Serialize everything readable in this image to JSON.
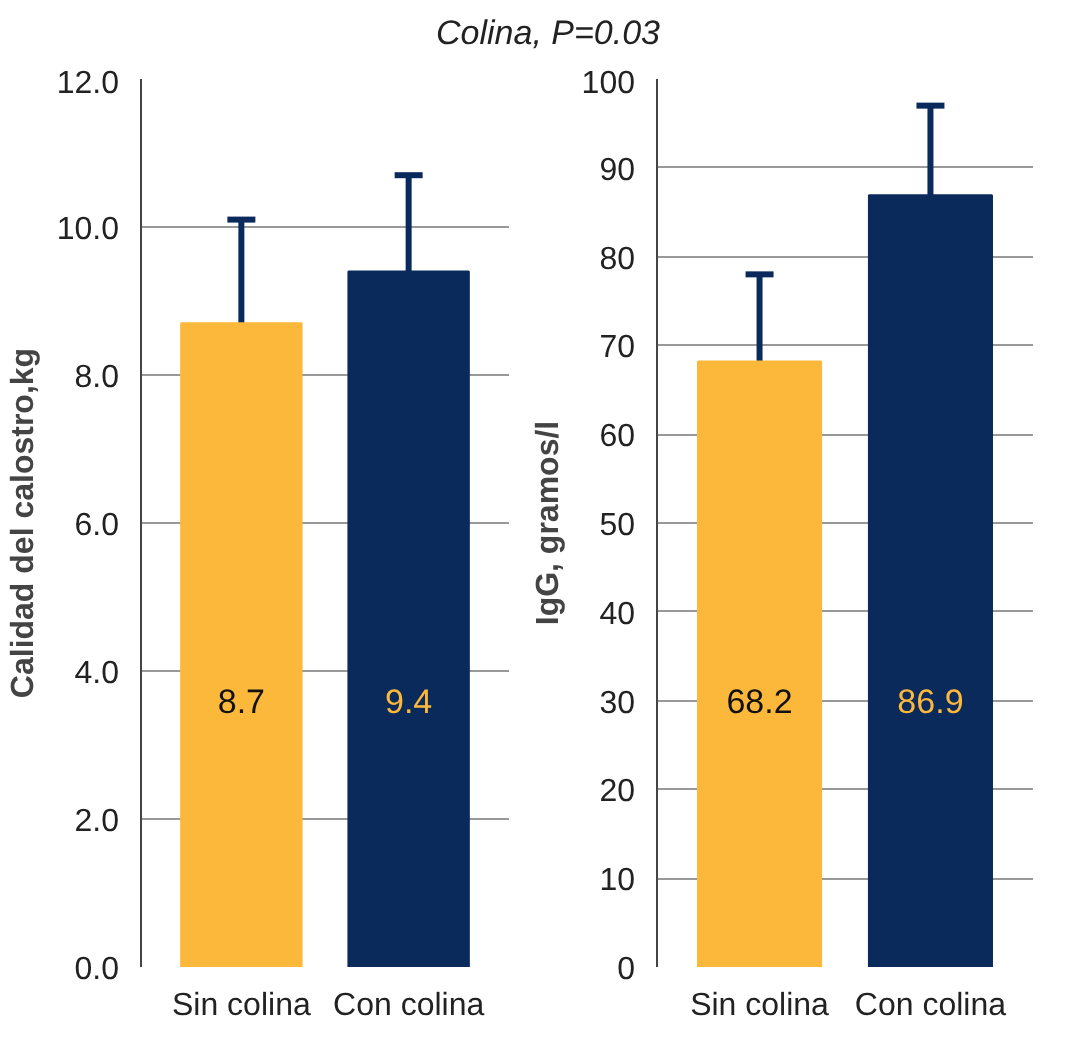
{
  "chart_data": [
    {
      "type": "bar",
      "title": "Colina, P=0.03",
      "ylabel": "Calidad del calostro,kg",
      "categories": [
        "Sin colina",
        "Con colina"
      ],
      "values": [
        8.7,
        9.4
      ],
      "colors": [
        "#fbb83a",
        "#0b2a5c"
      ],
      "errors": [
        [
          8.7,
          10.1
        ],
        [
          9.4,
          10.7
        ]
      ],
      "data_labels": true,
      "grid": "y",
      "ylim": [
        0,
        12
      ],
      "yticks": [
        {
          "value": 0,
          "label": "0.0"
        },
        {
          "value": 2,
          "label": "2.0"
        },
        {
          "value": 4,
          "label": "4.0"
        },
        {
          "value": 6,
          "label": "6.0"
        },
        {
          "value": 8,
          "label": "8.0"
        },
        {
          "value": 10,
          "label": "10.0"
        },
        {
          "value": 12,
          "label": "12.0"
        }
      ]
    },
    {
      "type": "bar",
      "ylabel": "IgG, gramos/l",
      "categories": [
        "Sin colina",
        "Con colina"
      ],
      "values": [
        68.2,
        86.9
      ],
      "colors": [
        "#fbb83a",
        "#0b2a5c"
      ],
      "errors": [
        [
          68.2,
          78
        ],
        [
          86.9,
          97
        ]
      ],
      "data_labels": true,
      "grid": "y",
      "ylim": [
        0,
        100
      ],
      "yticks": [
        0,
        10,
        20,
        30,
        40,
        50,
        60,
        70,
        80,
        90,
        100
      ]
    }
  ]
}
